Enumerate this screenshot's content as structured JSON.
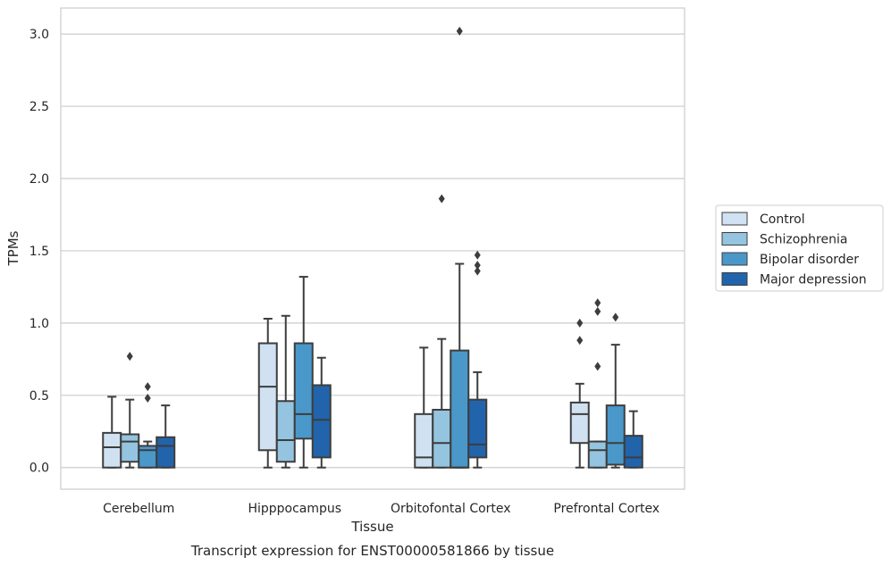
{
  "chart_data": {
    "type": "box",
    "xlabel": "Tissue",
    "ylabel": "TPMs",
    "caption": "Transcript expression for ENST00000581866 by tissue",
    "ylim": [
      -0.15,
      3.18
    ],
    "yticks": [
      0.0,
      0.5,
      1.0,
      1.5,
      2.0,
      2.5,
      3.0
    ],
    "ytick_labels": [
      "0.0",
      "0.5",
      "1.0",
      "1.5",
      "2.0",
      "2.5",
      "3.0"
    ],
    "grid": "horizontal",
    "legend_position": "right",
    "categories": [
      "Cerebellum",
      "Hipppocampus",
      "Orbitofontal Cortex",
      "Prefrontal Cortex"
    ],
    "series": [
      {
        "name": "Control",
        "color": "#d0e1f2",
        "boxes": [
          {
            "whislo": 0.0,
            "q1": 0.0,
            "med": 0.14,
            "q3": 0.24,
            "whishi": 0.49,
            "fliers": []
          },
          {
            "whislo": 0.0,
            "q1": 0.12,
            "med": 0.56,
            "q3": 0.86,
            "whishi": 1.03,
            "fliers": []
          },
          {
            "whislo": 0.0,
            "q1": 0.0,
            "med": 0.07,
            "q3": 0.37,
            "whishi": 0.83,
            "fliers": []
          },
          {
            "whislo": 0.0,
            "q1": 0.17,
            "med": 0.37,
            "q3": 0.45,
            "whishi": 0.58,
            "fliers": [
              0.88,
              1.0
            ]
          }
        ]
      },
      {
        "name": "Schizophrenia",
        "color": "#94c4df",
        "boxes": [
          {
            "whislo": 0.0,
            "q1": 0.04,
            "med": 0.18,
            "q3": 0.23,
            "whishi": 0.47,
            "fliers": [
              0.77
            ]
          },
          {
            "whislo": 0.0,
            "q1": 0.04,
            "med": 0.19,
            "q3": 0.46,
            "whishi": 1.05,
            "fliers": []
          },
          {
            "whislo": 0.0,
            "q1": 0.0,
            "med": 0.17,
            "q3": 0.4,
            "whishi": 0.89,
            "fliers": [
              1.86
            ]
          },
          {
            "whislo": 0.0,
            "q1": 0.0,
            "med": 0.12,
            "q3": 0.18,
            "whishi": 0.18,
            "fliers": [
              0.7,
              1.08,
              1.14
            ]
          }
        ]
      },
      {
        "name": "Bipolar disorder",
        "color": "#4a98c9",
        "boxes": [
          {
            "whislo": 0.0,
            "q1": 0.0,
            "med": 0.12,
            "q3": 0.15,
            "whishi": 0.18,
            "fliers": [
              0.48,
              0.56
            ]
          },
          {
            "whislo": 0.0,
            "q1": 0.2,
            "med": 0.37,
            "q3": 0.86,
            "whishi": 1.32,
            "fliers": []
          },
          {
            "whislo": 0.0,
            "q1": 0.0,
            "med": 0.0,
            "q3": 0.81,
            "whishi": 1.41,
            "fliers": [
              3.02
            ]
          },
          {
            "whislo": 0.0,
            "q1": 0.02,
            "med": 0.17,
            "q3": 0.43,
            "whishi": 0.85,
            "fliers": [
              1.04
            ]
          }
        ]
      },
      {
        "name": "Major depression",
        "color": "#2164ab",
        "boxes": [
          {
            "whislo": 0.0,
            "q1": 0.0,
            "med": 0.15,
            "q3": 0.21,
            "whishi": 0.43,
            "fliers": []
          },
          {
            "whislo": 0.0,
            "q1": 0.07,
            "med": 0.33,
            "q3": 0.57,
            "whishi": 0.76,
            "fliers": []
          },
          {
            "whislo": 0.0,
            "q1": 0.07,
            "med": 0.16,
            "q3": 0.47,
            "whishi": 0.66,
            "fliers": [
              1.36,
              1.4,
              1.47
            ]
          },
          {
            "whislo": 0.0,
            "q1": 0.0,
            "med": 0.07,
            "q3": 0.22,
            "whishi": 0.39,
            "fliers": []
          }
        ]
      }
    ]
  }
}
